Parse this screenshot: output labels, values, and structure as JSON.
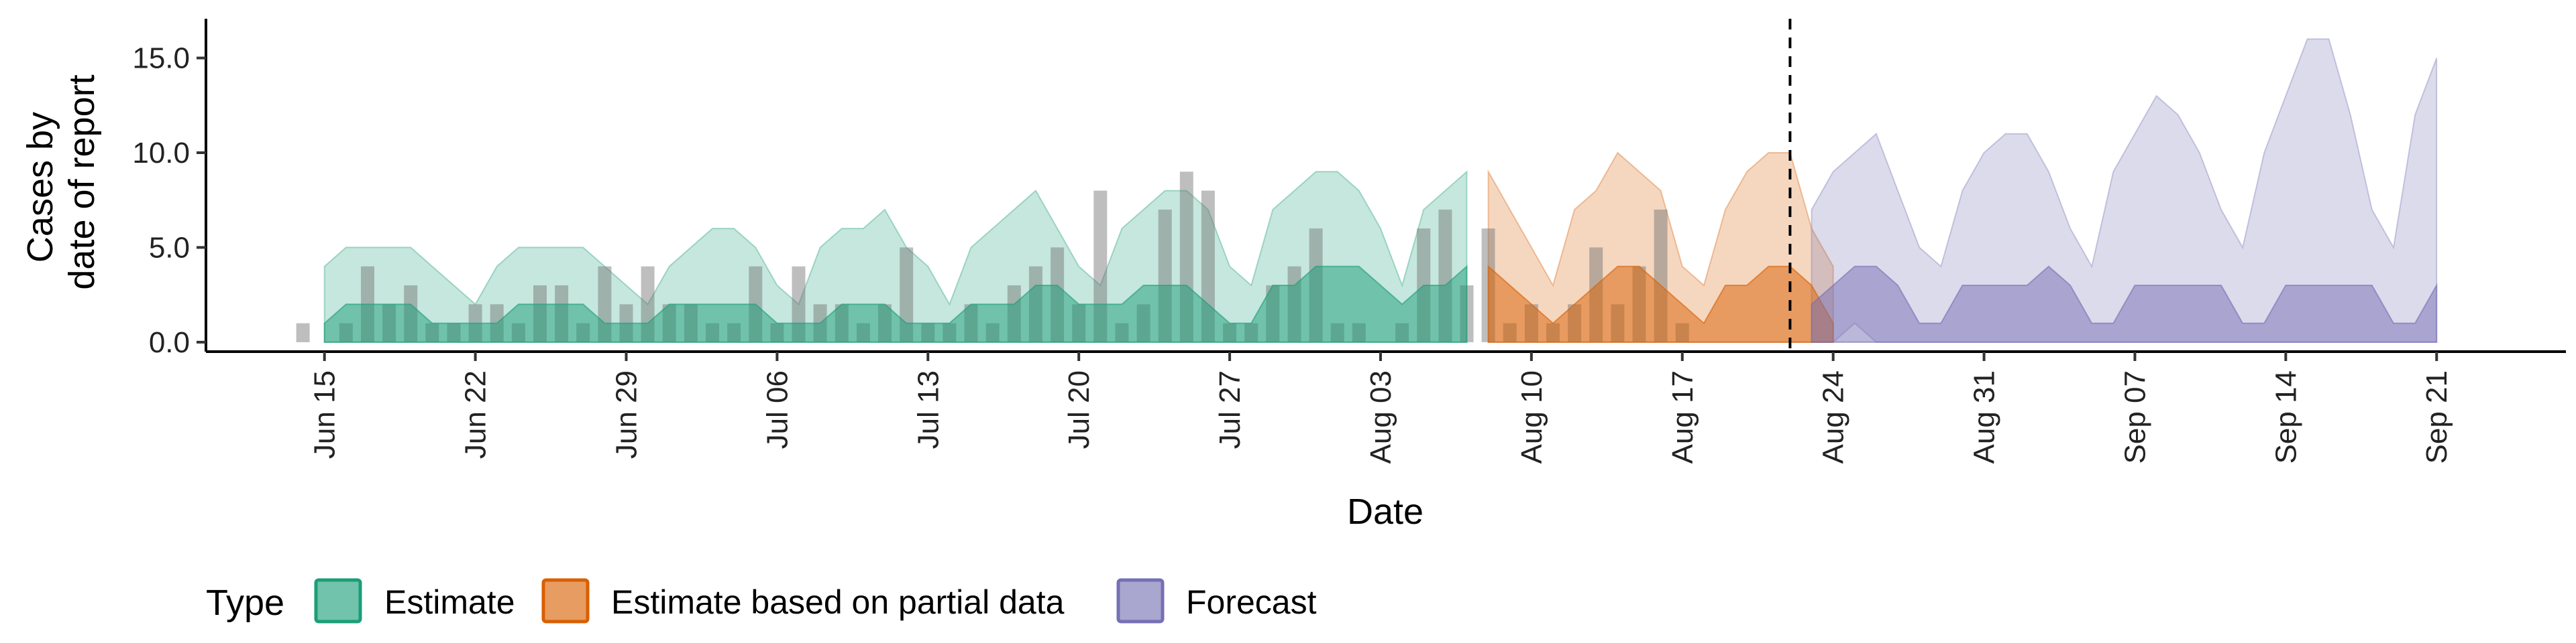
{
  "chart_data": {
    "type": "area",
    "xlabel": "Date",
    "ylabel_lines": [
      "Cases by",
      "date of report"
    ],
    "ylim": [
      -0.5,
      17
    ],
    "y_ticks": [
      0,
      5,
      10,
      15
    ],
    "y_tick_labels": [
      "0.0",
      "5.0",
      "10.0",
      "15.0"
    ],
    "x_start_date": "Jun 14",
    "x_tick_days": [
      1,
      8,
      15,
      22,
      29,
      36,
      43,
      50,
      57,
      64,
      71,
      78,
      85,
      92,
      99
    ],
    "x_tick_labels": [
      "Jun 15",
      "Jun 22",
      "Jun 29",
      "Jul 06",
      "Jul 13",
      "Jul 20",
      "Jul 27",
      "Aug 03",
      "Aug 10",
      "Aug 17",
      "Aug 24",
      "Aug 31",
      "Sep 07",
      "Sep 14",
      "Sep 21"
    ],
    "x_range_days": [
      -4.5,
      105
    ],
    "forecast_line_day": 69,
    "legend": {
      "title": "Type",
      "items": [
        {
          "label": "Estimate",
          "color": "#1b9e77"
        },
        {
          "label": "Estimate based on partial data",
          "color": "#d95f02"
        },
        {
          "label": "Forecast",
          "color": "#7570b3"
        }
      ]
    },
    "reported_cases": {
      "start_day": 0,
      "values": [
        1,
        0,
        1,
        4,
        2,
        3,
        1,
        1,
        2,
        2,
        1,
        3,
        3,
        1,
        4,
        2,
        4,
        2,
        2,
        1,
        1,
        4,
        1,
        4,
        2,
        2,
        1,
        2,
        5,
        1,
        1,
        2,
        1,
        3,
        4,
        5,
        2,
        8,
        1,
        2,
        7,
        9,
        8,
        1,
        1,
        3,
        4,
        6,
        1,
        1,
        0,
        1,
        6,
        7,
        3,
        6,
        1,
        2,
        1,
        2,
        5,
        2,
        4,
        7,
        1
      ]
    },
    "series": [
      {
        "name": "Estimate",
        "color": "#1b9e77",
        "start_day": 1,
        "outer_upper": [
          4,
          5,
          5,
          5,
          5,
          4,
          3,
          2,
          4,
          5,
          5,
          5,
          5,
          4,
          3,
          2,
          4,
          5,
          6,
          6,
          5,
          3,
          2,
          5,
          6,
          6,
          7,
          5,
          4,
          2,
          5,
          6,
          7,
          8,
          6,
          4,
          3,
          6,
          7,
          8,
          8,
          7,
          4,
          3,
          7,
          8,
          9,
          9,
          8,
          6,
          3,
          7,
          8,
          9
        ],
        "outer_lower": [
          0,
          0,
          0,
          0,
          0,
          0,
          0,
          0,
          0,
          0,
          0,
          0,
          0,
          0,
          0,
          0,
          0,
          0,
          0,
          0,
          0,
          0,
          0,
          0,
          0,
          0,
          0,
          0,
          0,
          0,
          0,
          0,
          0,
          0,
          0,
          0,
          0,
          0,
          0,
          0,
          0,
          0,
          0,
          0,
          0,
          0,
          0,
          0,
          0,
          0,
          0,
          0,
          0,
          0
        ],
        "inner_upper": [
          1,
          2,
          2,
          2,
          2,
          1,
          1,
          1,
          1,
          2,
          2,
          2,
          2,
          1,
          1,
          1,
          2,
          2,
          2,
          2,
          2,
          1,
          1,
          1,
          2,
          2,
          2,
          1,
          1,
          1,
          2,
          2,
          2,
          3,
          3,
          2,
          2,
          2,
          3,
          3,
          3,
          2,
          1,
          1,
          3,
          3,
          4,
          4,
          4,
          3,
          2,
          3,
          3,
          4
        ],
        "inner_lower": [
          0,
          0,
          0,
          0,
          0,
          0,
          0,
          0,
          0,
          0,
          0,
          0,
          0,
          0,
          0,
          0,
          0,
          0,
          0,
          0,
          0,
          0,
          0,
          0,
          0,
          0,
          0,
          0,
          0,
          0,
          0,
          0,
          0,
          0,
          0,
          0,
          0,
          0,
          0,
          0,
          0,
          0,
          0,
          0,
          0,
          0,
          0,
          0,
          0,
          0,
          0,
          0,
          0,
          0
        ]
      },
      {
        "name": "Estimate based on partial data",
        "color": "#d95f02",
        "start_day": 55,
        "outer_upper": [
          9,
          7,
          5,
          3,
          7,
          8,
          10,
          9,
          8,
          4,
          3,
          7,
          9,
          10,
          10,
          6,
          4
        ],
        "outer_lower": [
          0,
          0,
          0,
          0,
          0,
          0,
          0,
          0,
          0,
          0,
          0,
          0,
          0,
          0,
          0,
          0,
          0
        ],
        "inner_upper": [
          4,
          3,
          2,
          1,
          2,
          3,
          4,
          4,
          3,
          2,
          1,
          3,
          3,
          4,
          4,
          3,
          1
        ],
        "inner_lower": [
          0,
          0,
          0,
          0,
          0,
          0,
          0,
          0,
          0,
          0,
          0,
          0,
          0,
          0,
          0,
          0,
          0
        ]
      },
      {
        "name": "Forecast",
        "color": "#7570b3",
        "start_day": 70,
        "outer_upper": [
          7,
          9,
          10,
          11,
          8,
          5,
          4,
          8,
          10,
          11,
          11,
          9,
          6,
          4,
          9,
          11,
          13,
          12,
          10,
          7,
          5,
          10,
          13,
          16,
          16,
          12,
          7,
          5,
          12,
          15
        ],
        "outer_lower": [
          0,
          0,
          1,
          0,
          0,
          0,
          0,
          0,
          0,
          0,
          0,
          0,
          0,
          0,
          0,
          0,
          0,
          0,
          0,
          0,
          0,
          0,
          0,
          0,
          0,
          0,
          0,
          0,
          0,
          0
        ],
        "inner_upper": [
          2,
          3,
          4,
          4,
          3,
          1,
          1,
          3,
          3,
          3,
          3,
          4,
          3,
          1,
          1,
          3,
          3,
          3,
          3,
          3,
          1,
          1,
          3,
          3,
          3,
          3,
          3,
          1,
          1,
          3
        ],
        "inner_lower": [
          0,
          0,
          0,
          0,
          0,
          0,
          0,
          0,
          0,
          0,
          0,
          0,
          0,
          0,
          0,
          0,
          0,
          0,
          0,
          0,
          0,
          0,
          0,
          0,
          0,
          0,
          0,
          0,
          0,
          0
        ]
      }
    ]
  }
}
